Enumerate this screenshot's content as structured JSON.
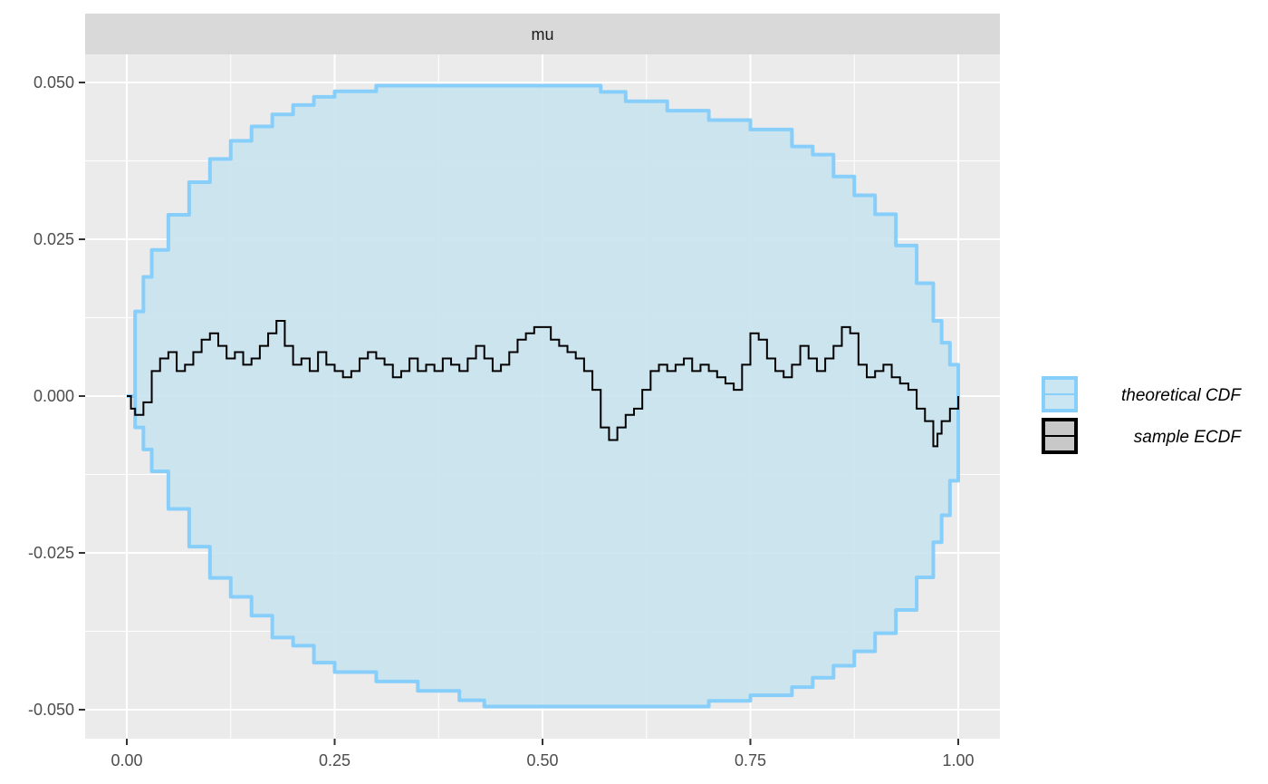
{
  "chart_data": {
    "type": "line",
    "facet_label": "mu",
    "xlim": [
      0,
      1
    ],
    "ylim": [
      -0.05,
      0.05
    ],
    "x_ticks": [
      0,
      0.25,
      0.5,
      0.75,
      1
    ],
    "x_tick_labels": [
      "0.00",
      "0.25",
      "0.50",
      "0.75",
      "1.00"
    ],
    "y_ticks": [
      0.05,
      0.025,
      0,
      -0.025,
      -0.05
    ],
    "y_tick_labels": [
      "0.050",
      "0.025",
      "0.000",
      "-0.025",
      "-0.050"
    ],
    "grid": true,
    "legend_position": "right",
    "legend": [
      {
        "label": "theoretical CDF",
        "fill": "#c9e6f2",
        "stroke": "#87cefa"
      },
      {
        "label": "sample ECDF",
        "fill": "#c8c8c8",
        "stroke": "#000000"
      }
    ],
    "colors": {
      "panel_background": "#ebebeb",
      "grid": "#ffffff",
      "band_fill": "#c9e3ee",
      "band_stroke": "#87cefa",
      "ecdf_line": "#000000",
      "strip_background": "#d9d9d9"
    },
    "series": [
      {
        "name": "theoretical CDF",
        "role": "band",
        "x": [
          0,
          0.01,
          0.02,
          0.03,
          0.05,
          0.075,
          0.1,
          0.125,
          0.15,
          0.175,
          0.2,
          0.225,
          0.25,
          0.3,
          0.35,
          0.4,
          0.43,
          0.47,
          0.5,
          0.53,
          0.57,
          0.6,
          0.65,
          0.7,
          0.75,
          0.8,
          0.825,
          0.85,
          0.875,
          0.9,
          0.925,
          0.95,
          0.97,
          0.98,
          0.99,
          1
        ],
        "upper": [
          0,
          0.0135,
          0.019,
          0.0233,
          0.0289,
          0.0341,
          0.0378,
          0.0407,
          0.043,
          0.0449,
          0.0464,
          0.0477,
          0.0486,
          0.0495,
          0.0495,
          0.0495,
          0.0495,
          0.0495,
          0.0495,
          0.0495,
          0.0485,
          0.047,
          0.0455,
          0.044,
          0.0425,
          0.0398,
          0.0385,
          0.035,
          0.032,
          0.029,
          0.024,
          0.018,
          0.012,
          0.0085,
          0.005,
          0
        ],
        "lower": [
          0,
          -0.005,
          -0.0085,
          -0.012,
          -0.018,
          -0.024,
          -0.029,
          -0.032,
          -0.035,
          -0.0385,
          -0.0398,
          -0.0425,
          -0.044,
          -0.0455,
          -0.047,
          -0.0485,
          -0.0495,
          -0.0495,
          -0.0495,
          -0.0495,
          -0.0495,
          -0.0495,
          -0.0495,
          -0.0486,
          -0.0477,
          -0.0464,
          -0.0449,
          -0.043,
          -0.0407,
          -0.0378,
          -0.0341,
          -0.0289,
          -0.0233,
          -0.019,
          -0.0135,
          0
        ]
      },
      {
        "name": "sample ECDF",
        "role": "step",
        "x": [
          0,
          0.005,
          0.01,
          0.02,
          0.03,
          0.04,
          0.05,
          0.06,
          0.07,
          0.08,
          0.09,
          0.1,
          0.11,
          0.12,
          0.13,
          0.14,
          0.15,
          0.16,
          0.17,
          0.18,
          0.19,
          0.2,
          0.21,
          0.22,
          0.23,
          0.24,
          0.25,
          0.26,
          0.27,
          0.28,
          0.29,
          0.3,
          0.31,
          0.32,
          0.33,
          0.34,
          0.35,
          0.36,
          0.37,
          0.38,
          0.39,
          0.4,
          0.41,
          0.42,
          0.43,
          0.44,
          0.45,
          0.46,
          0.47,
          0.48,
          0.49,
          0.5,
          0.51,
          0.52,
          0.53,
          0.54,
          0.55,
          0.56,
          0.57,
          0.58,
          0.59,
          0.6,
          0.61,
          0.62,
          0.63,
          0.64,
          0.65,
          0.66,
          0.67,
          0.68,
          0.69,
          0.7,
          0.71,
          0.72,
          0.73,
          0.74,
          0.75,
          0.76,
          0.77,
          0.78,
          0.79,
          0.8,
          0.81,
          0.82,
          0.83,
          0.84,
          0.85,
          0.86,
          0.87,
          0.88,
          0.89,
          0.9,
          0.91,
          0.92,
          0.93,
          0.94,
          0.95,
          0.96,
          0.97,
          0.975,
          0.98,
          0.99,
          1
        ],
        "y": [
          0,
          -0.002,
          -0.003,
          -0.001,
          0.004,
          0.006,
          0.007,
          0.004,
          0.005,
          0.007,
          0.009,
          0.01,
          0.008,
          0.006,
          0.007,
          0.005,
          0.006,
          0.008,
          0.01,
          0.012,
          0.008,
          0.005,
          0.006,
          0.004,
          0.007,
          0.005,
          0.004,
          0.003,
          0.004,
          0.006,
          0.007,
          0.006,
          0.005,
          0.003,
          0.004,
          0.006,
          0.004,
          0.005,
          0.004,
          0.006,
          0.005,
          0.004,
          0.006,
          0.008,
          0.006,
          0.004,
          0.005,
          0.007,
          0.009,
          0.01,
          0.011,
          0.011,
          0.009,
          0.008,
          0.007,
          0.006,
          0.004,
          0.001,
          -0.005,
          -0.007,
          -0.005,
          -0.003,
          -0.002,
          0.001,
          0.004,
          0.005,
          0.004,
          0.005,
          0.006,
          0.004,
          0.005,
          0.004,
          0.003,
          0.002,
          0.001,
          0.005,
          0.01,
          0.009,
          0.006,
          0.004,
          0.003,
          0.005,
          0.008,
          0.006,
          0.004,
          0.006,
          0.008,
          0.011,
          0.01,
          0.005,
          0.003,
          0.004,
          0.005,
          0.003,
          0.002,
          0.001,
          -0.002,
          -0.004,
          -0.008,
          -0.006,
          -0.004,
          -0.002,
          0
        ]
      }
    ]
  }
}
